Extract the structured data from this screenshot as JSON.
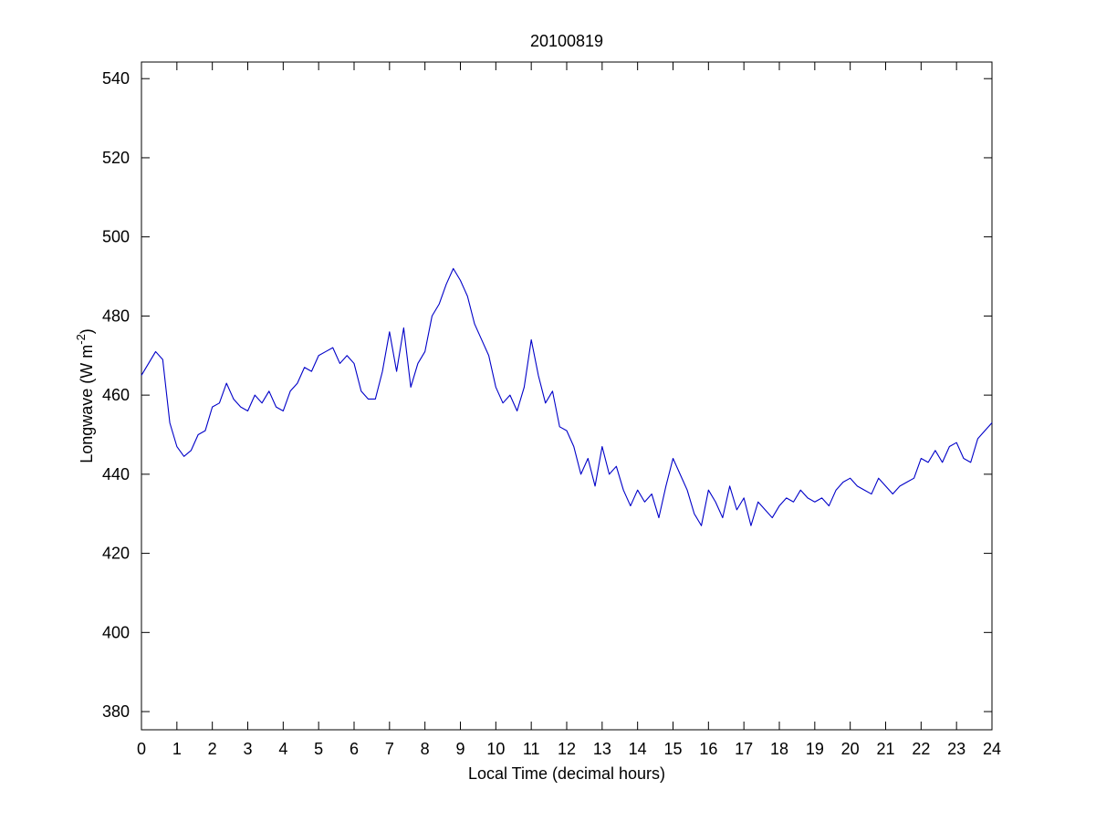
{
  "chart_data": {
    "type": "line",
    "title": "20100819",
    "xlabel": "Local Time (decimal hours)",
    "ylabel_parts": [
      "Longwave (W m",
      "-2",
      ")"
    ],
    "color": "#0000c8",
    "xlim": [
      0,
      24
    ],
    "xticks": [
      0,
      1,
      2,
      3,
      4,
      5,
      6,
      7,
      8,
      9,
      10,
      11,
      12,
      13,
      14,
      15,
      16,
      17,
      18,
      19,
      20,
      21,
      22,
      23,
      24
    ],
    "ylim": [
      375.4,
      544.2
    ],
    "yticks": [
      380,
      400,
      420,
      440,
      460,
      480,
      500,
      520,
      540
    ],
    "box": true,
    "x": [
      0,
      0.2,
      0.4,
      0.6,
      0.8,
      1,
      1.2,
      1.4,
      1.6,
      1.8,
      2,
      2.2,
      2.4,
      2.6,
      2.8,
      3,
      3.2,
      3.4,
      3.6,
      3.8,
      4,
      4.2,
      4.4,
      4.6,
      4.8,
      5,
      5.2,
      5.4,
      5.6,
      5.8,
      6,
      6.2,
      6.4,
      6.6,
      6.8,
      7,
      7.2,
      7.4,
      7.6,
      7.8,
      8,
      8.2,
      8.4,
      8.6,
      8.8,
      9,
      9.2,
      9.4,
      9.6,
      9.8,
      10,
      10.2,
      10.4,
      10.6,
      10.8,
      11,
      11.2,
      11.4,
      11.6,
      11.8,
      12,
      12.2,
      12.4,
      12.6,
      12.8,
      13,
      13.2,
      13.4,
      13.6,
      13.8,
      14,
      14.2,
      14.4,
      14.6,
      14.8,
      15,
      15.2,
      15.4,
      15.6,
      15.8,
      16,
      16.2,
      16.4,
      16.6,
      16.8,
      17,
      17.2,
      17.4,
      17.6,
      17.8,
      18,
      18.2,
      18.4,
      18.6,
      18.8,
      19,
      19.2,
      19.4,
      19.6,
      19.8,
      20,
      20.2,
      20.4,
      20.6,
      20.8,
      21,
      21.2,
      21.4,
      21.6,
      21.8,
      22,
      22.2,
      22.4,
      22.6,
      22.8,
      23,
      23.2,
      23.4,
      23.6,
      23.8,
      24
    ],
    "values": [
      465,
      468,
      471,
      469,
      453,
      447,
      444.5,
      446,
      450,
      451,
      457,
      458,
      463,
      459,
      457,
      456,
      460,
      458,
      461,
      457,
      456,
      461,
      463,
      467,
      466,
      470,
      471,
      472,
      468,
      470,
      468,
      461,
      459,
      459,
      466,
      476,
      466,
      477,
      462,
      468,
      471,
      480,
      483,
      488,
      492,
      489,
      485,
      478,
      474,
      470,
      462,
      458,
      460,
      456,
      462,
      474,
      465,
      458,
      461,
      452,
      451,
      447,
      440,
      444,
      437,
      447,
      440,
      442,
      436,
      432,
      436,
      433,
      435,
      429,
      437,
      444,
      440,
      436,
      430,
      427,
      436,
      433,
      429,
      437,
      431,
      434,
      427,
      433,
      431,
      429,
      432,
      434,
      433,
      436,
      434,
      433,
      434,
      432,
      436,
      438,
      439,
      437,
      436,
      435,
      439,
      437,
      435,
      437,
      438,
      439,
      444,
      443,
      446,
      443,
      447,
      448,
      444,
      443,
      449,
      451,
      453
    ]
  }
}
